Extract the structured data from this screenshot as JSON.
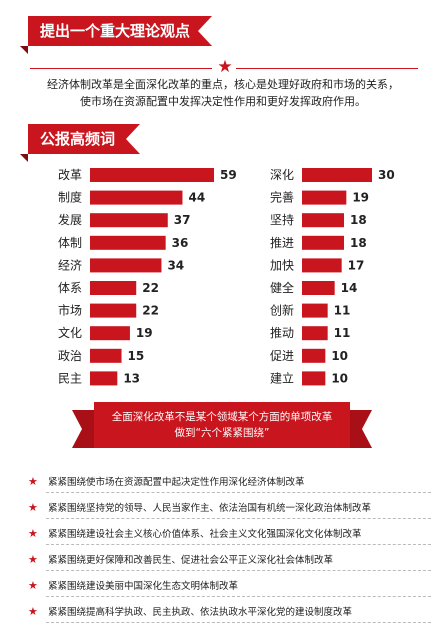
{
  "section1": {
    "title": "提出一个重大理论观点"
  },
  "intro": {
    "line1": "经济体制改革是全面深化改革的重点，核心是处理好政府和市场的关系，",
    "line2": "使市场在资源配置中发挥决定性作用和更好发挥政府作用。"
  },
  "section2": {
    "title": "公报高频词"
  },
  "colors": {
    "accent": "#c9151e",
    "dark_accent": "#a80f17"
  },
  "chart_data": [
    {
      "type": "bar",
      "orientation": "horizontal",
      "categories": [
        "改革",
        "制度",
        "发展",
        "体制",
        "经济",
        "体系",
        "市场",
        "文化",
        "政治",
        "民主"
      ],
      "values": [
        59,
        44,
        37,
        36,
        34,
        22,
        22,
        19,
        15,
        13
      ]
    },
    {
      "type": "bar",
      "orientation": "horizontal",
      "categories": [
        "深化",
        "完善",
        "坚持",
        "推进",
        "加快",
        "健全",
        "创新",
        "推动",
        "促进",
        "建立"
      ],
      "values": [
        30,
        19,
        18,
        18,
        17,
        14,
        11,
        11,
        10,
        10
      ]
    }
  ],
  "banner": {
    "line1": "全面深化改革不是某个领域某个方面的单项改革",
    "line2": "做到“六个紧紧围绕”"
  },
  "bullets": [
    "紧紧围绕使市场在资源配置中起决定性作用深化经济体制改革",
    "紧紧围绕坚持党的领导、人民当家作主、依法治国有机统一深化政治体制改革",
    "紧紧围绕建设社会主义核心价值体系、社会主义文化强国深化文化体制改革",
    "紧紧围绕更好保障和改善民生、促进社会公平正义深化社会体制改革",
    "紧紧围绕建设美丽中国深化生态文明体制改革",
    "紧紧围绕提高科学执政、民主执政、依法执政水平深化党的建设制度改革"
  ]
}
